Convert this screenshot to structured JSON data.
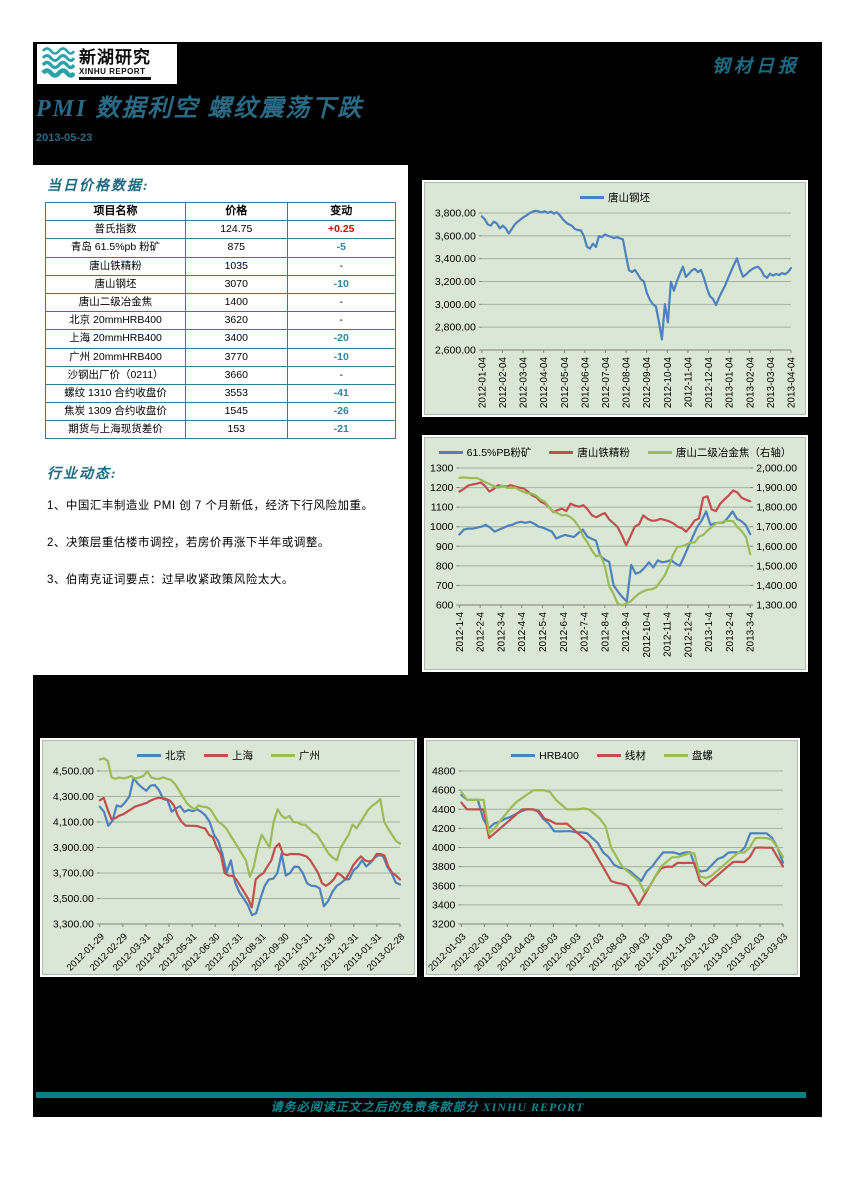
{
  "page": {
    "brand_cn": "新湖研究",
    "brand_en": "XINHU REPORT",
    "report_type": "钢材日报",
    "title": "PMI 数据利空  螺纹震荡下跌",
    "date": "2013-05-23",
    "footer": "请务必阅读正文之后的免责条款部分 XINHU REPORT"
  },
  "colors": {
    "teal_heading": "#2a6a84",
    "teal_bar": "#0d7d86",
    "table_border": "#2e7f96",
    "change_up": "#e00000",
    "change_down": "#31849b",
    "chart_bg": "#d9e7d4",
    "series_blue": "#4f81bd",
    "series_red": "#c0504d",
    "series_green": "#9bbb59"
  },
  "price_table": {
    "section_title": "当日价格数据:",
    "headers": [
      "项目名称",
      "价格",
      "变动"
    ],
    "rows": [
      {
        "name": "普氏指数",
        "price": "124.75",
        "change": "+0.25",
        "dir": "up"
      },
      {
        "name": "青岛 61.5%pb 粉矿",
        "price": "875",
        "change": "-5",
        "dir": "down"
      },
      {
        "name": "唐山铁精粉",
        "price": "1035",
        "change": "-",
        "dir": "flat"
      },
      {
        "name": "唐山钢坯",
        "price": "3070",
        "change": "-10",
        "dir": "down"
      },
      {
        "name": "唐山二级冶金焦",
        "price": "1400",
        "change": "-",
        "dir": "flat"
      },
      {
        "name": "北京 20mmHRB400",
        "price": "3620",
        "change": "-",
        "dir": "flat"
      },
      {
        "name": "上海 20mmHRB400",
        "price": "3400",
        "change": "-20",
        "dir": "down"
      },
      {
        "name": "广州 20mmHRB400",
        "price": "3770",
        "change": "-10",
        "dir": "down"
      },
      {
        "name": "沙钢出厂价（0211）",
        "price": "3660",
        "change": "-",
        "dir": "flat"
      },
      {
        "name": "螺纹 1310 合约收盘价",
        "price": "3553",
        "change": "-41",
        "dir": "down"
      },
      {
        "name": "焦炭 1309 合约收盘价",
        "price": "1545",
        "change": "-26",
        "dir": "down"
      },
      {
        "name": "期货与上海现货差价",
        "price": "153",
        "change": "-21",
        "dir": "down"
      }
    ]
  },
  "news": {
    "section_title": "行业动态:",
    "items": [
      "1、中国汇丰制造业 PMI 创 7 个月新低，经济下行风险加重。",
      "2、决策层重估楼市调控，若房价再涨下半年或调整。",
      "3、伯南克证词要点：过早收紧政策风险太大。"
    ]
  },
  "chart_data": [
    {
      "type": "line",
      "name": "tangshan-billet",
      "legend_position": "top",
      "grid": true,
      "x_rotation": 90,
      "categories": [
        "2012-01-04",
        "2012-02-04",
        "2012-03-04",
        "2012-04-04",
        "2012-05-04",
        "2012-06-04",
        "2012-07-04",
        "2012-08-04",
        "2012-09-04",
        "2012-10-04",
        "2012-11-04",
        "2012-12-04",
        "2013-01-04",
        "2013-02-04",
        "2013-03-04",
        "2013-04-04"
      ],
      "y_left": {
        "min": 2600,
        "max": 3800,
        "step": 200,
        "labels": [
          "2,600.00",
          "2,800.00",
          "3,000.00",
          "3,200.00",
          "3,400.00",
          "3,600.00",
          "3,800.00"
        ]
      },
      "series": [
        {
          "name": "唐山钢坯",
          "color": "#4f81bd",
          "axis": "left",
          "values": [
            3770,
            3745,
            3700,
            3690,
            3725,
            3710,
            3665,
            3690,
            3665,
            3620,
            3660,
            3700,
            3725,
            3745,
            3765,
            3780,
            3800,
            3812,
            3820,
            3812,
            3806,
            3815,
            3800,
            3812,
            3795,
            3806,
            3780,
            3745,
            3718,
            3700,
            3688,
            3660,
            3650,
            3648,
            3598,
            3505,
            3488,
            3530,
            3502,
            3598,
            3588,
            3612,
            3600,
            3592,
            3580,
            3588,
            3578,
            3570,
            3432,
            3300,
            3282,
            3302,
            3262,
            3218,
            3200,
            3098,
            3040,
            3000,
            2982,
            2848,
            2692,
            3002,
            2842,
            3198,
            3120,
            3202,
            3268,
            3330,
            3240,
            3268,
            3298,
            3310,
            3282,
            3302,
            3232,
            3142,
            3072,
            3048,
            2992,
            3058,
            3112,
            3162,
            3228,
            3288,
            3348,
            3402,
            3312,
            3242,
            3262,
            3288,
            3308,
            3322,
            3330,
            3302,
            3252,
            3232,
            3268,
            3252,
            3266,
            3256,
            3274,
            3264,
            3282,
            3318
          ]
        }
      ]
    },
    {
      "type": "line",
      "name": "raw-materials",
      "legend_position": "top",
      "grid": true,
      "x_rotation": 90,
      "categories": [
        "2012-1-4",
        "2012-2-4",
        "2012-3-4",
        "2012-4-4",
        "2012-5-4",
        "2012-6-4",
        "2012-7-4",
        "2012-8-4",
        "2012-9-4",
        "2012-10-4",
        "2012-11-4",
        "2012-12-4",
        "2013-1-4",
        "2013-2-4",
        "2013-3-4"
      ],
      "y_left": {
        "min": 600,
        "max": 1300,
        "step": 100,
        "labels": [
          "600",
          "700",
          "800",
          "900",
          "1000",
          "1100",
          "1200",
          "1300"
        ]
      },
      "y_right": {
        "min": 1300,
        "max": 2000,
        "step": 100,
        "labels": [
          "1,300.00",
          "1,400.00",
          "1,500.00",
          "1,600.00",
          "1,700.00",
          "1,800.00",
          "1,900.00",
          "2,000.00"
        ]
      },
      "series": [
        {
          "name": "61.5%PB粉矿",
          "color": "#4f81bd",
          "axis": "left",
          "values": [
            960,
            985,
            990,
            990,
            995,
            1000,
            1010,
            995,
            975,
            985,
            995,
            1005,
            1010,
            1020,
            1025,
            1020,
            1025,
            1015,
            1000,
            995,
            985,
            975,
            940,
            950,
            958,
            952,
            948,
            968,
            985,
            950,
            938,
            928,
            850,
            832,
            820,
            700,
            668,
            640,
            618,
            805,
            760,
            768,
            790,
            818,
            792,
            828,
            818,
            822,
            830,
            812,
            800,
            848,
            900,
            950,
            1000,
            1032,
            1078,
            1010,
            1018,
            1020,
            1022,
            1048,
            1078,
            1040,
            1028,
            1008,
            962
          ]
        },
        {
          "name": "唐山铁精粉",
          "color": "#c0504d",
          "axis": "left",
          "values": [
            1180,
            1192,
            1210,
            1215,
            1220,
            1226,
            1208,
            1180,
            1192,
            1212,
            1208,
            1205,
            1212,
            1206,
            1200,
            1196,
            1180,
            1160,
            1150,
            1128,
            1118,
            1098,
            1075,
            1085,
            1092,
            1080,
            1118,
            1108,
            1102,
            1110,
            1088,
            1058,
            1048,
            1060,
            1070,
            1038,
            1018,
            998,
            955,
            905,
            952,
            1000,
            1012,
            1058,
            1040,
            1030,
            1032,
            1040,
            1035,
            1028,
            1018,
            1000,
            993,
            975,
            1000,
            1032,
            1042,
            1148,
            1155,
            1088,
            1080,
            1118,
            1140,
            1160,
            1185,
            1175,
            1148,
            1138,
            1130
          ]
        },
        {
          "name": "唐山二级冶金焦（右轴）",
          "color": "#9bbb59",
          "axis": "right",
          "values": [
            1950,
            1952,
            1950,
            1948,
            1950,
            1940,
            1928,
            1918,
            1908,
            1900,
            1910,
            1900,
            1898,
            1900,
            1888,
            1878,
            1870,
            1868,
            1858,
            1838,
            1828,
            1798,
            1778,
            1768,
            1758,
            1760,
            1748,
            1728,
            1698,
            1648,
            1618,
            1578,
            1548,
            1558,
            1498,
            1398,
            1358,
            1308,
            1298,
            1308,
            1318,
            1340,
            1358,
            1370,
            1378,
            1380,
            1390,
            1420,
            1450,
            1500,
            1558,
            1598,
            1600,
            1608,
            1618,
            1620,
            1648,
            1658,
            1680,
            1698,
            1718,
            1720,
            1728,
            1730,
            1728,
            1698,
            1678,
            1648,
            1560
          ]
        }
      ]
    },
    {
      "type": "line",
      "name": "city-rebar-prices",
      "legend_position": "top",
      "grid": true,
      "x_rotation": 45,
      "categories": [
        "2012-01-29",
        "2012-02-29",
        "2012-03-31",
        "2012-04-30",
        "2012-05-31",
        "2012-06-30",
        "2012-07-31",
        "2012-08-31",
        "2012-09-30",
        "2012-10-31",
        "2012-11-30",
        "2012-12-31",
        "2013-01-31",
        "2013-02-28"
      ],
      "y_left": {
        "min": 3300,
        "max": 4500,
        "step": 200,
        "labels": [
          "3,300.00",
          "3,500.00",
          "3,700.00",
          "3,900.00",
          "4,100.00",
          "4,300.00",
          "4,500.00"
        ]
      },
      "series": [
        {
          "name": "北京",
          "color": "#4f81bd",
          "axis": "left",
          "values": [
            4220,
            4180,
            4070,
            4110,
            4230,
            4220,
            4255,
            4300,
            4445,
            4400,
            4370,
            4345,
            4385,
            4390,
            4350,
            4280,
            4270,
            4180,
            4205,
            4225,
            4180,
            4195,
            4185,
            4200,
            4180,
            4150,
            4100,
            4000,
            3950,
            3850,
            3705,
            3800,
            3625,
            3550,
            3500,
            3450,
            3370,
            3385,
            3500,
            3600,
            3650,
            3655,
            3700,
            3850,
            3680,
            3700,
            3750,
            3748,
            3700,
            3620,
            3600,
            3598,
            3580,
            3440,
            3480,
            3550,
            3598,
            3620,
            3648,
            3652,
            3720,
            3748,
            3800,
            3752,
            3780,
            3820,
            3840,
            3832,
            3750,
            3700,
            3625,
            3610
          ]
        },
        {
          "name": "上海",
          "color": "#c0504d",
          "axis": "left",
          "values": [
            4270,
            4290,
            4200,
            4120,
            4130,
            4150,
            4160,
            4180,
            4200,
            4220,
            4230,
            4240,
            4250,
            4268,
            4280,
            4290,
            4288,
            4280,
            4268,
            4230,
            4150,
            4100,
            4072,
            4070,
            4070,
            4068,
            4058,
            4050,
            4000,
            3980,
            3900,
            3850,
            3700,
            3680,
            3678,
            3650,
            3600,
            3550,
            3500,
            3430,
            3650,
            3680,
            3700,
            3750,
            3800,
            3900,
            3930,
            3850,
            3840,
            3850,
            3848,
            3848,
            3840,
            3830,
            3800,
            3750,
            3700,
            3620,
            3600,
            3620,
            3650,
            3700,
            3680,
            3650,
            3700,
            3760,
            3800,
            3830,
            3800,
            3790,
            3800,
            3850,
            3848,
            3838,
            3750,
            3700,
            3680,
            3650
          ]
        },
        {
          "name": "广州",
          "color": "#9bbb59",
          "axis": "left",
          "values": [
            4590,
            4600,
            4580,
            4450,
            4440,
            4450,
            4442,
            4450,
            4460,
            4440,
            4450,
            4460,
            4498,
            4450,
            4440,
            4438,
            4450,
            4440,
            4430,
            4400,
            4350,
            4300,
            4250,
            4220,
            4200,
            4230,
            4220,
            4218,
            4200,
            4150,
            4100,
            4080,
            4050,
            4000,
            3950,
            3900,
            3850,
            3800,
            3670,
            3750,
            3900,
            4000,
            3950,
            3900,
            4100,
            4200,
            4150,
            4130,
            4148,
            4100,
            4098,
            4080,
            4078,
            4050,
            4020,
            4000,
            3950,
            3900,
            3850,
            3820,
            3800,
            3900,
            3950,
            4000,
            4080,
            4050,
            4100,
            4148,
            4198,
            4228,
            4250,
            4280,
            4100,
            4048,
            4000,
            3950,
            3930
          ]
        }
      ]
    },
    {
      "type": "line",
      "name": "product-prices",
      "legend_position": "top",
      "grid": true,
      "x_rotation": 45,
      "categories": [
        "2012-01-03",
        "2012-02-03",
        "2012-03-03",
        "2012-04-03",
        "2012-05-03",
        "2012-06-03",
        "2012-07-03",
        "2012-08-03",
        "2012-09-03",
        "2012-10-03",
        "2012-11-03",
        "2012-12-03",
        "2013-01-03",
        "2013-02-03",
        "2013-03-03"
      ],
      "y_left": {
        "min": 3200,
        "max": 4800,
        "step": 200,
        "labels": [
          "3200",
          "3400",
          "3600",
          "3800",
          "4000",
          "4200",
          "4400",
          "4600",
          "4800"
        ]
      },
      "series": [
        {
          "name": "HRB400",
          "color": "#4f81bd",
          "axis": "left",
          "values": [
            4550,
            4500,
            4498,
            4500,
            4300,
            4200,
            4250,
            4270,
            4300,
            4320,
            4350,
            4380,
            4400,
            4398,
            4380,
            4300,
            4250,
            4170,
            4168,
            4170,
            4170,
            4160,
            4158,
            4150,
            4100,
            4048,
            3950,
            3900,
            3820,
            3790,
            3778,
            3750,
            3700,
            3650,
            3750,
            3800,
            3880,
            3948,
            3950,
            3948,
            3930,
            3948,
            3950,
            3780,
            3750,
            3760,
            3820,
            3880,
            3900,
            3948,
            3950,
            3948,
            4000,
            4148,
            4150,
            4148,
            4148,
            4100,
            4000,
            3840
          ]
        },
        {
          "name": "线材",
          "color": "#c0504d",
          "axis": "left",
          "values": [
            4470,
            4400,
            4398,
            4400,
            4398,
            4100,
            4150,
            4200,
            4250,
            4300,
            4350,
            4398,
            4400,
            4398,
            4380,
            4300,
            4280,
            4250,
            4248,
            4250,
            4200,
            4150,
            4100,
            4050,
            3950,
            3850,
            3750,
            3650,
            3630,
            3620,
            3600,
            3500,
            3400,
            3500,
            3600,
            3700,
            3780,
            3800,
            3798,
            3840,
            3838,
            3840,
            3838,
            3650,
            3600,
            3650,
            3700,
            3750,
            3800,
            3848,
            3850,
            3848,
            3900,
            3998,
            4000,
            3998,
            3998,
            3900,
            3800
          ]
        },
        {
          "name": "盘螺",
          "color": "#9bbb59",
          "axis": "left",
          "values": [
            4580,
            4500,
            4498,
            4500,
            4498,
            4150,
            4200,
            4280,
            4350,
            4420,
            4480,
            4520,
            4560,
            4598,
            4600,
            4598,
            4580,
            4500,
            4450,
            4400,
            4398,
            4400,
            4408,
            4400,
            4350,
            4300,
            4220,
            4000,
            3900,
            3800,
            3750,
            3700,
            3650,
            3530,
            3600,
            3700,
            3800,
            3850,
            3898,
            3900,
            3918,
            3938,
            3938,
            3700,
            3680,
            3700,
            3750,
            3800,
            3850,
            3900,
            3948,
            3948,
            4000,
            4098,
            4100,
            4098,
            4080,
            4000,
            3900
          ]
        }
      ]
    }
  ]
}
